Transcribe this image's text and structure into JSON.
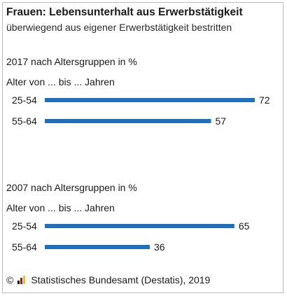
{
  "title": "Frauen: Lebensunterhalt aus Erwerbstätigkeit",
  "subtitle": "überwiegend aus eigener Erwerbstätigkeit bestritten",
  "footer": {
    "copyright_symbol": "©",
    "source": "Statistisches Bundesamt (Destatis), 2019"
  },
  "colors": {
    "bar": "#1f6fbf",
    "text": "#1a1a1a"
  },
  "chart_data": [
    {
      "type": "bar",
      "orientation": "horizontal",
      "title": "2017 nach Altersgruppen in %",
      "ylabel": "Alter von ... bis ... Jahren",
      "categories": [
        "25-54",
        "55-64"
      ],
      "values": [
        72,
        57
      ],
      "unit": "%",
      "xlim": [
        0,
        72
      ]
    },
    {
      "type": "bar",
      "orientation": "horizontal",
      "title": "2007 nach Altersgruppen in %",
      "ylabel": "Alter von ... bis ... Jahren",
      "categories": [
        "25-54",
        "55-64"
      ],
      "values": [
        65,
        36
      ],
      "unit": "%",
      "xlim": [
        0,
        72
      ]
    }
  ]
}
